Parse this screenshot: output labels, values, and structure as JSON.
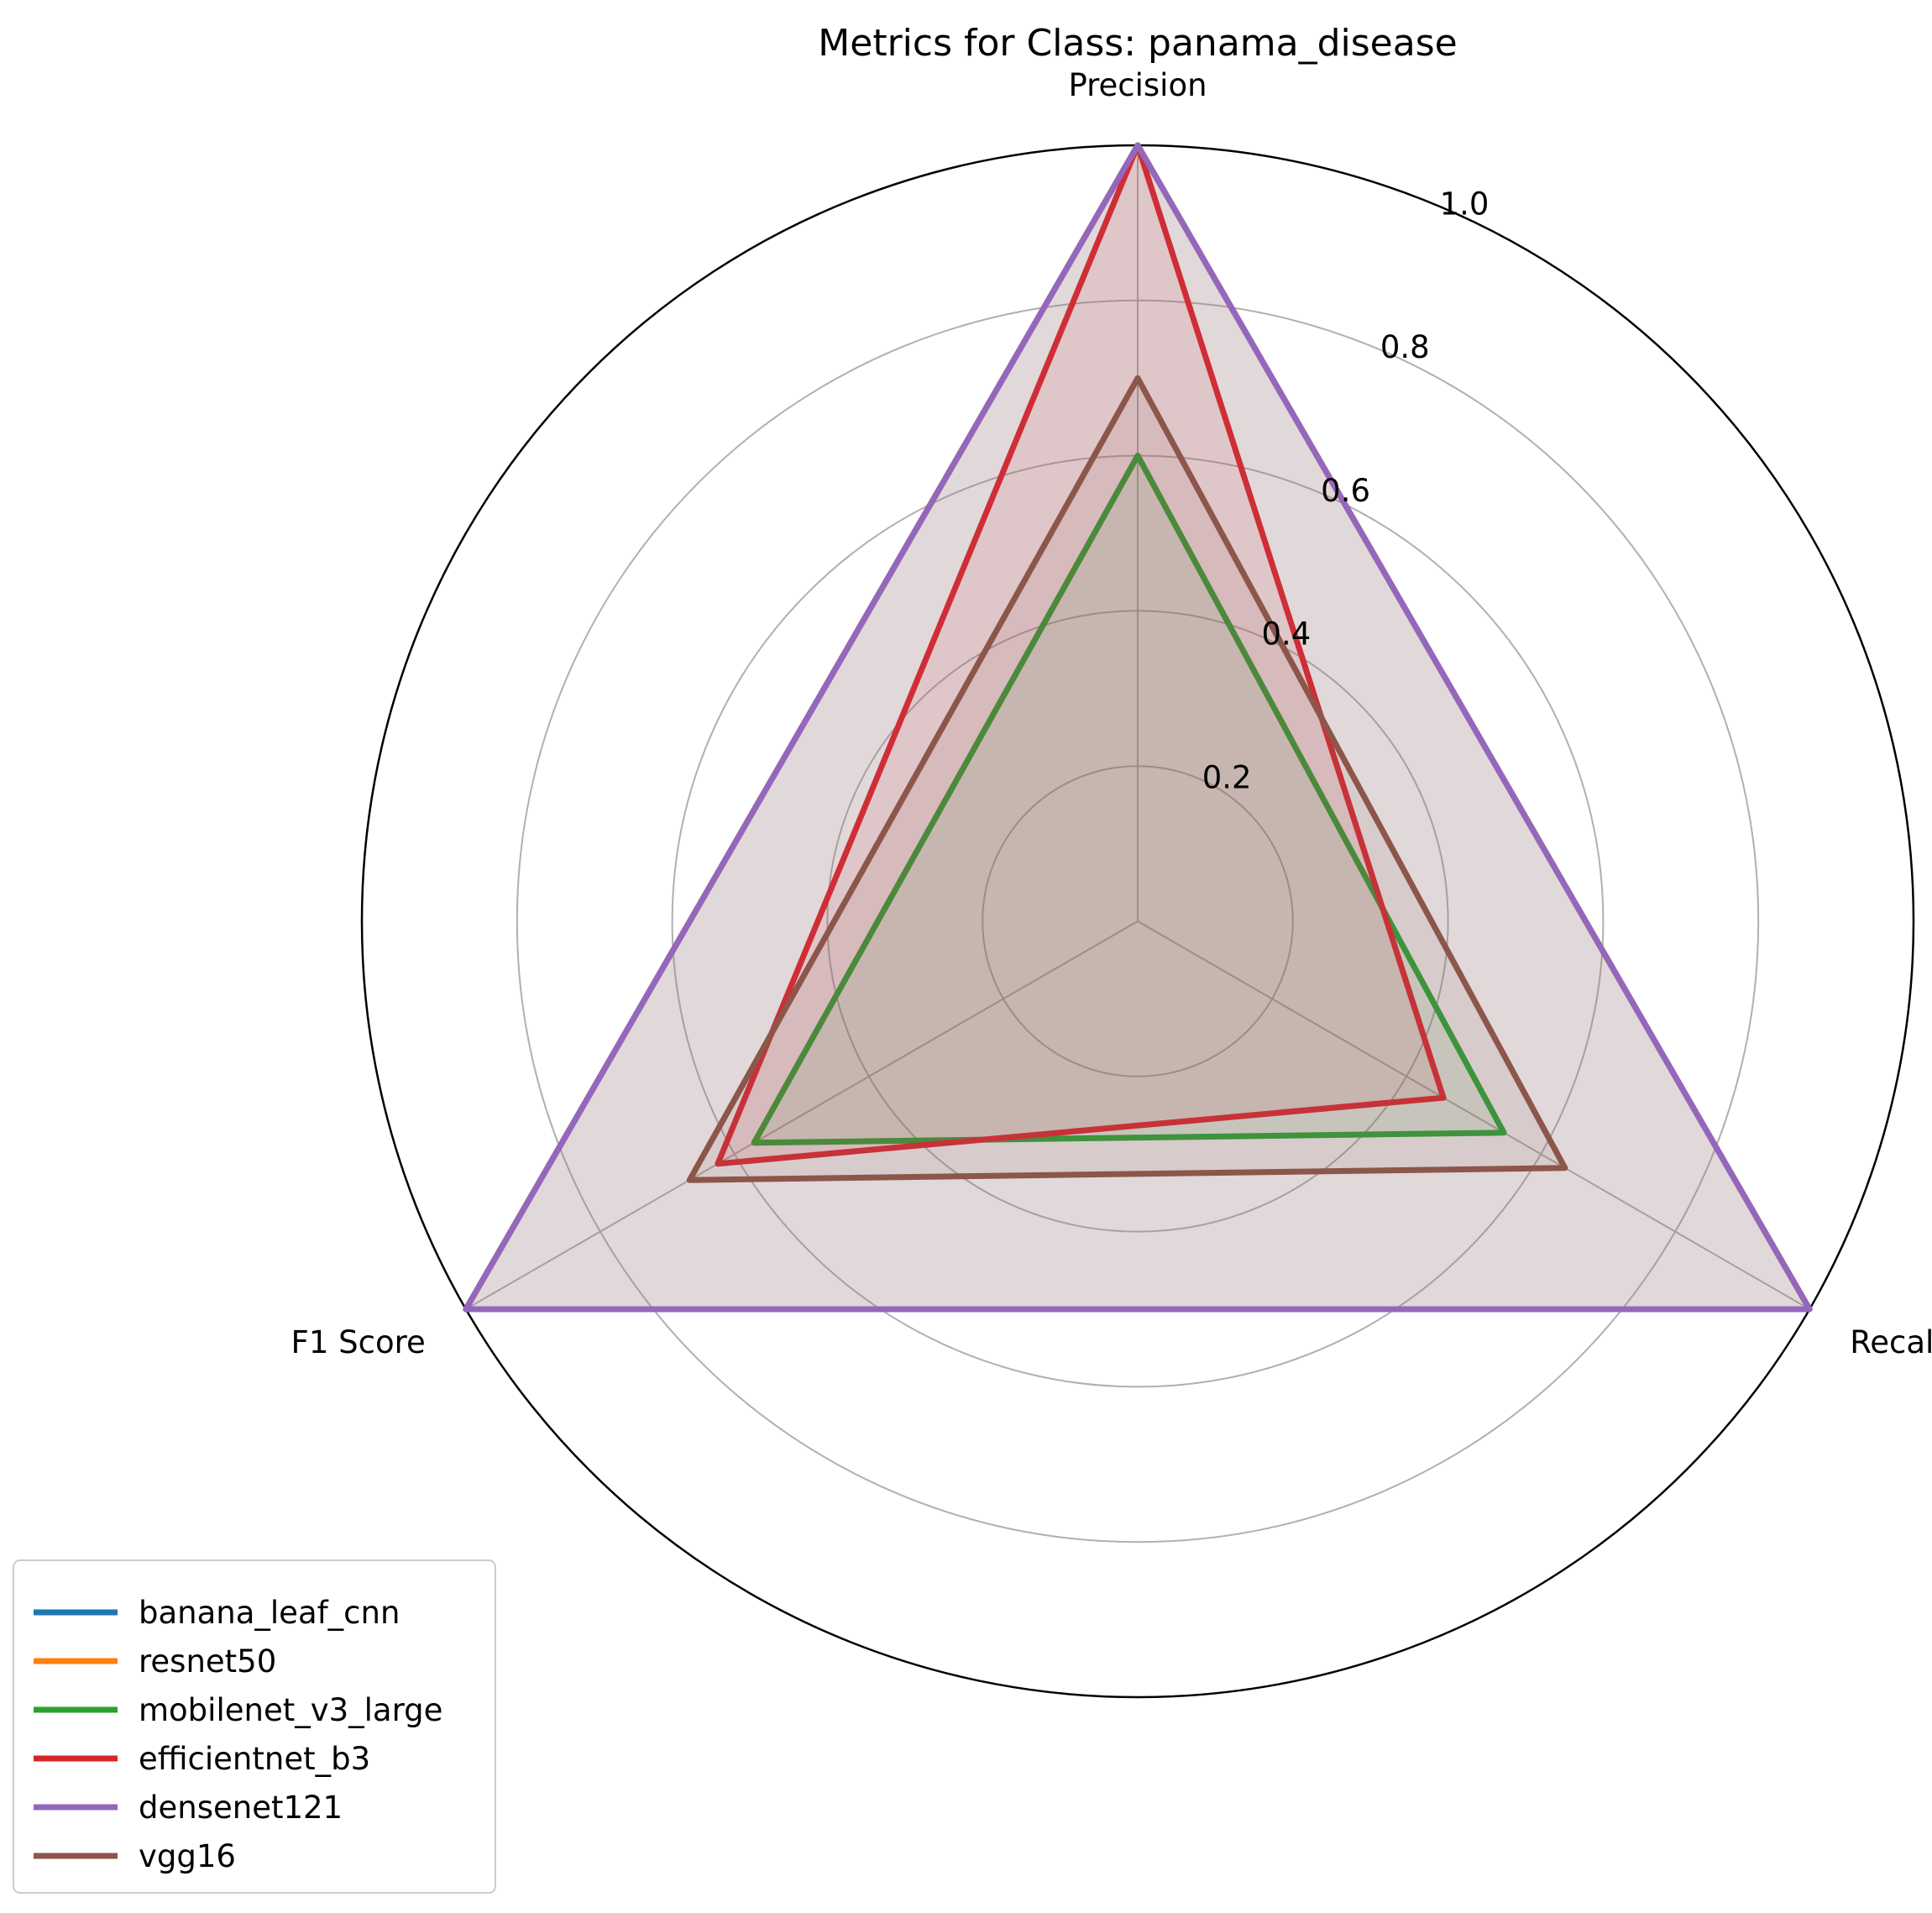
{
  "chart_data": {
    "type": "radar",
    "title": "Metrics for Class: panama_disease",
    "axes": [
      "Precision",
      "Recall",
      "F1 Score"
    ],
    "rlim": [
      0,
      1.0
    ],
    "rticks": [
      0.2,
      0.4,
      0.6,
      0.8,
      1.0
    ],
    "rtick_labels": [
      "0.2",
      "0.4",
      "0.6",
      "0.8",
      "1.0"
    ],
    "grid": true,
    "legend_position": "lower-left",
    "series": [
      {
        "name": "banana_leaf_cnn",
        "color": "#1f77b4",
        "values": [
          1.0,
          1.0,
          1.0
        ]
      },
      {
        "name": "resnet50",
        "color": "#ff7f0e",
        "values": [
          1.0,
          1.0,
          1.0
        ]
      },
      {
        "name": "mobilenet_v3_large",
        "color": "#2ca02c",
        "values": [
          0.6,
          0.545,
          0.571
        ]
      },
      {
        "name": "efficientnet_b3",
        "color": "#d62728",
        "values": [
          1.0,
          0.455,
          0.625
        ]
      },
      {
        "name": "densenet121",
        "color": "#9467bd",
        "values": [
          1.0,
          1.0,
          1.0
        ]
      },
      {
        "name": "vgg16",
        "color": "#8c564b",
        "values": [
          0.7,
          0.636,
          0.667
        ]
      }
    ]
  }
}
